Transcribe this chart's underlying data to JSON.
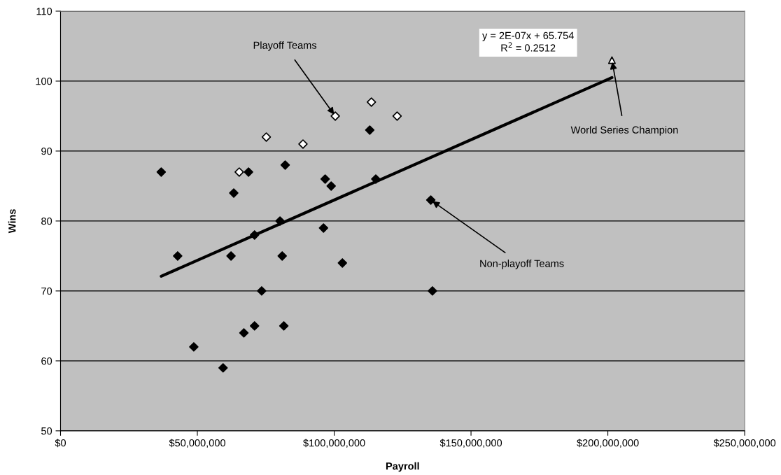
{
  "chart_data": {
    "type": "scatter",
    "xlabel": "Payroll",
    "ylabel": "Wins",
    "xlim": [
      0,
      250000000
    ],
    "ylim": [
      50,
      110
    ],
    "xticks": [
      {
        "value": 0,
        "label": "$0"
      },
      {
        "value": 50000000,
        "label": "$50,000,000"
      },
      {
        "value": 100000000,
        "label": "$100,000,000"
      },
      {
        "value": 150000000,
        "label": "$150,000,000"
      },
      {
        "value": 200000000,
        "label": "$200,000,000"
      },
      {
        "value": 250000000,
        "label": "$250,000,000"
      }
    ],
    "yticks": [
      50,
      60,
      70,
      80,
      90,
      100,
      110
    ],
    "grid": "y",
    "series": [
      {
        "marker": "diamond",
        "color": "#000000",
        "x": [
          36800000,
          42800000,
          48700000,
          59400000,
          63300000,
          62300000,
          67000000,
          68700000,
          70900000,
          70900000,
          73500000,
          80200000,
          81000000,
          81600000,
          82100000,
          96100000,
          96700000,
          98900000,
          103000000,
          113000000,
          115200000,
          135300000,
          135900000
        ],
        "values": [
          87,
          75,
          62,
          59,
          84,
          75,
          64,
          87,
          78,
          65,
          70,
          80,
          75,
          65,
          88,
          79,
          86,
          85,
          74,
          93,
          86,
          83,
          70
        ]
      },
      {
        "marker": "diamond",
        "color": "#ffffff",
        "x": [
          65300000,
          75200000,
          88600000,
          100400000,
          113600000,
          123000000
        ],
        "values": [
          87,
          92,
          91,
          95,
          97,
          95
        ]
      },
      {
        "marker": "triangle",
        "color": "#ffffff",
        "x": [
          201500000
        ],
        "values": [
          103
        ]
      },
      {
        "type": "line",
        "marker": "none",
        "line_style": "solid",
        "color": "#000000",
        "x": [
          36800000,
          201500000
        ],
        "values": [
          72.1,
          100.5
        ]
      }
    ],
    "annotations": [
      {
        "text": "Playoff Teams",
        "x": 100400000,
        "y": 95
      },
      {
        "text": "Non-playoff Teams",
        "x": 135300000,
        "y": 83
      },
      {
        "text": "World Series Champion",
        "x": 201500000,
        "y": 103
      },
      "y = 2E-07x + 65.754\nR$^{2}$ = 0.2512"
    ]
  }
}
